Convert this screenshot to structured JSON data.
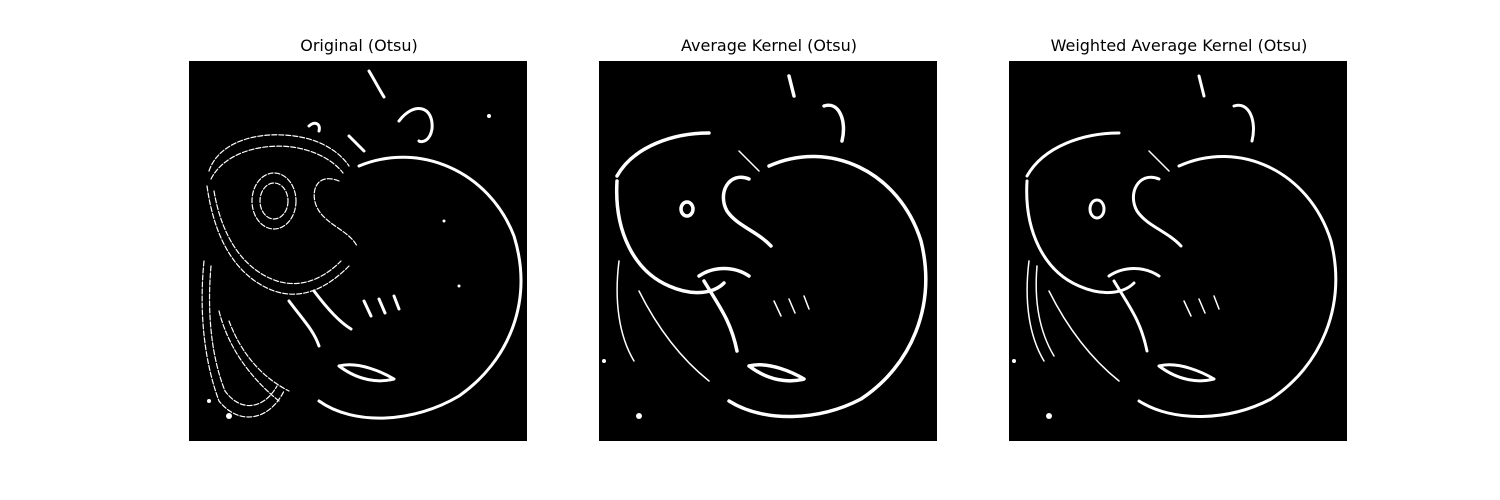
{
  "figure": {
    "background_color": "#ffffff",
    "image_background": "#000000",
    "edge_color": "#ffffff",
    "panels": [
      {
        "title": "Original (Otsu)",
        "variant": "original"
      },
      {
        "title": "Average Kernel (Otsu)",
        "variant": "average"
      },
      {
        "title": "Weighted Average Kernel (Otsu)",
        "variant": "weighted"
      }
    ]
  }
}
